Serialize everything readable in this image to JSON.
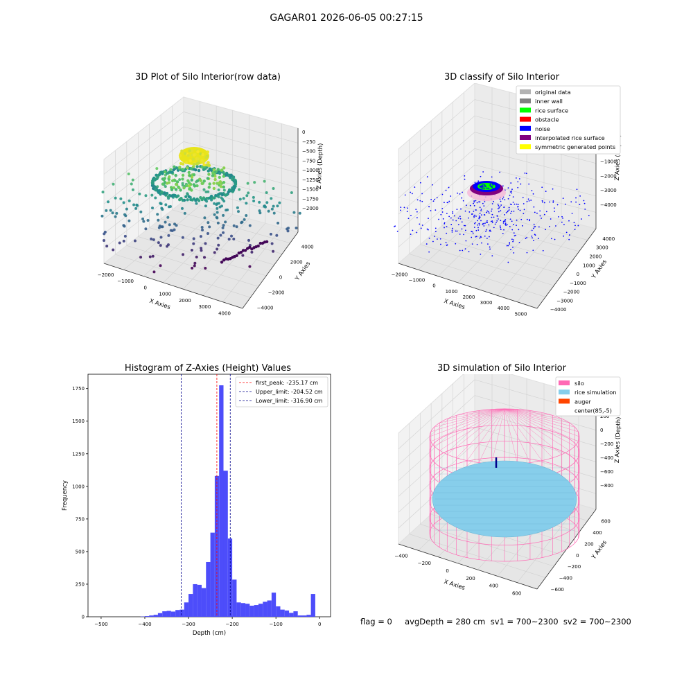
{
  "figure": {
    "suptitle": "GAGAR01 2026-06-05 00:27:15",
    "footer": "flag = 0     avgDepth = 280 cm  sv1 = 700~2300  sv2 = 700~2300"
  },
  "colors": {
    "blue_hist": "#4d4dfa",
    "red": "#ff0000",
    "navy": "#00008b",
    "silo_pink": "#ff69b4",
    "rice_blue": "#87ceeb",
    "auger": "#ff4500",
    "pane": "#f2f2f2",
    "grid": "#d0d0d0"
  },
  "chart_data": [
    {
      "type": "scatter",
      "subtype": "3d",
      "title": "3D Plot of Silo Interior(row data)",
      "xlabel": "X Axies",
      "ylabel": "Y Axies",
      "zlabel": "Z Axies (Depth)",
      "x_ticks": [
        "−2000",
        "−1000",
        "0",
        "1000",
        "2000",
        "3000",
        "4000"
      ],
      "y_ticks": [
        "−4000",
        "−2000",
        "0",
        "2000",
        "4000"
      ],
      "z_ticks": [
        "0",
        "−250",
        "−500",
        "−750",
        "−1000",
        "−1250",
        "−1500",
        "−1750",
        "−2000"
      ],
      "colormap": "viridis",
      "series": [
        {
          "name": "",
          "values": [
            {
              "x": 400,
              "y": 300,
              "z": -200
            },
            {
              "x": 500,
              "y": 0,
              "z": -240
            },
            {
              "x": 0,
              "y": 400,
              "z": -500
            },
            {
              "x": 1000,
              "y": 200,
              "z": -600
            },
            {
              "x": -500,
              "y": 0,
              "z": -900
            },
            {
              "x": 1500,
              "y": -500,
              "z": -1000
            },
            {
              "x": -1000,
              "y": -1000,
              "z": -1300
            },
            {
              "x": 2000,
              "y": 500,
              "z": -1400
            },
            {
              "x": 2500,
              "y": -3000,
              "z": -1900
            },
            {
              "x": 3500,
              "y": -1000,
              "z": -2000
            }
          ]
        }
      ]
    },
    {
      "type": "scatter",
      "subtype": "3d",
      "title": "3D classify of Silo Interior",
      "xlabel": "X Axies",
      "ylabel": "Y Axies",
      "zlabel": "Z Axies (Depth)",
      "x_ticks": [
        "−2000",
        "−1000",
        "0",
        "1000",
        "2000",
        "3000",
        "4000",
        "5000"
      ],
      "y_ticks": [
        "−4000",
        "−3000",
        "−2000",
        "−1000",
        "0",
        "1000",
        "2000",
        "3000",
        "4000"
      ],
      "z_ticks": [
        "2000",
        "1000",
        "0",
        "−1000",
        "−2000",
        "−3000",
        "−4000"
      ],
      "legend": [
        "original data",
        "inner wall",
        "rice surface",
        "obstacle",
        "noise",
        "interpolated rice surface",
        "symmetric generated points"
      ],
      "legend_colors": [
        "#b3b3b3",
        "#808080",
        "#00ff00",
        "#ff0000",
        "#0000ff",
        "#800080",
        "#ffff00"
      ],
      "legend_position": "upper-right"
    },
    {
      "type": "bar",
      "title": "Histogram of Z-Axies (Height) Values",
      "xlabel": "Depth (cm)",
      "ylabel": "Frequency",
      "xlim": [
        -530,
        25
      ],
      "ylim": [
        0,
        1860
      ],
      "x_ticks": [
        "−500",
        "−400",
        "−300",
        "−200",
        "−100",
        "0"
      ],
      "y_ticks": [
        "0",
        "250",
        "500",
        "750",
        "1000",
        "1250",
        "1500",
        "1750"
      ],
      "bin_width": 10,
      "bin_start": -520,
      "values": [
        0,
        0,
        0,
        0,
        0,
        0,
        0,
        0,
        0,
        0,
        0,
        2,
        5,
        10,
        15,
        28,
        42,
        45,
        40,
        52,
        55,
        110,
        175,
        250,
        245,
        220,
        420,
        645,
        1080,
        1775,
        1120,
        600,
        285,
        110,
        105,
        100,
        85,
        90,
        100,
        115,
        125,
        185,
        80,
        55,
        48,
        30,
        42,
        10,
        10,
        15,
        175
      ],
      "vlines": [
        {
          "label": "first_peak: -235.17 cm",
          "x": -235.17,
          "color": "#ff0000"
        },
        {
          "label": "Upper_limit: -204.52 cm",
          "x": -204.52,
          "color": "#00008b"
        },
        {
          "label": "Lower_limit: -316.90 cm",
          "x": -316.9,
          "color": "#00008b"
        }
      ],
      "legend_position": "upper-right"
    },
    {
      "type": "surface",
      "subtype": "3d",
      "title": "3D simulation of Silo Interior",
      "xlabel": "X Axies",
      "ylabel": "Y Axies",
      "zlabel": "Z Axies (Depth)",
      "x_ticks": [
        "−400",
        "−200",
        "0",
        "200",
        "400",
        "600"
      ],
      "y_ticks": [
        "−600",
        "−400",
        "−200",
        "0",
        "200",
        "400",
        "600"
      ],
      "z_ticks": [
        "400",
        "200",
        "0",
        "−200",
        "−400",
        "−600",
        "−800"
      ],
      "legend": [
        "silo",
        "rice simulation",
        "auger",
        "center(85,-5)"
      ],
      "legend_colors": [
        "#ff69b4",
        "#87ceeb",
        "#ff4500",
        "none"
      ],
      "legend_position": "upper-right"
    }
  ]
}
